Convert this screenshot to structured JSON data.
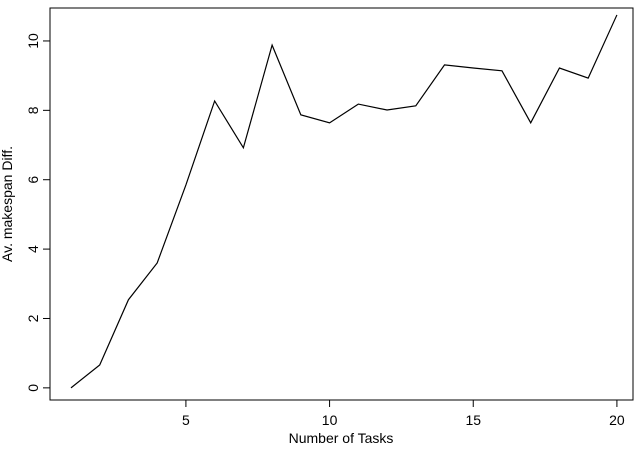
{
  "chart_data": {
    "type": "line",
    "x_label": "Number of Tasks",
    "y_label": "Av. makespan Diff.",
    "x": [
      1,
      2,
      3,
      4,
      5,
      6,
      7,
      8,
      9,
      10,
      11,
      12,
      13,
      14,
      15,
      16,
      17,
      18,
      19,
      20
    ],
    "series": [
      {
        "color": "#000000",
        "values": [
          0,
          0.66,
          2.54,
          3.6,
          5.85,
          8.27,
          6.92,
          9.88,
          7.87,
          7.64,
          8.18,
          8.01,
          8.13,
          9.31,
          9.22,
          9.14,
          7.64,
          9.22,
          8.93,
          10.75
        ]
      }
    ],
    "xlim": [
      0.27,
      20.56
    ],
    "ylim": [
      -0.35,
      10.95
    ],
    "xticks": [
      5,
      10,
      15,
      20
    ],
    "yticks": [
      0,
      2,
      4,
      6,
      8,
      10
    ]
  }
}
